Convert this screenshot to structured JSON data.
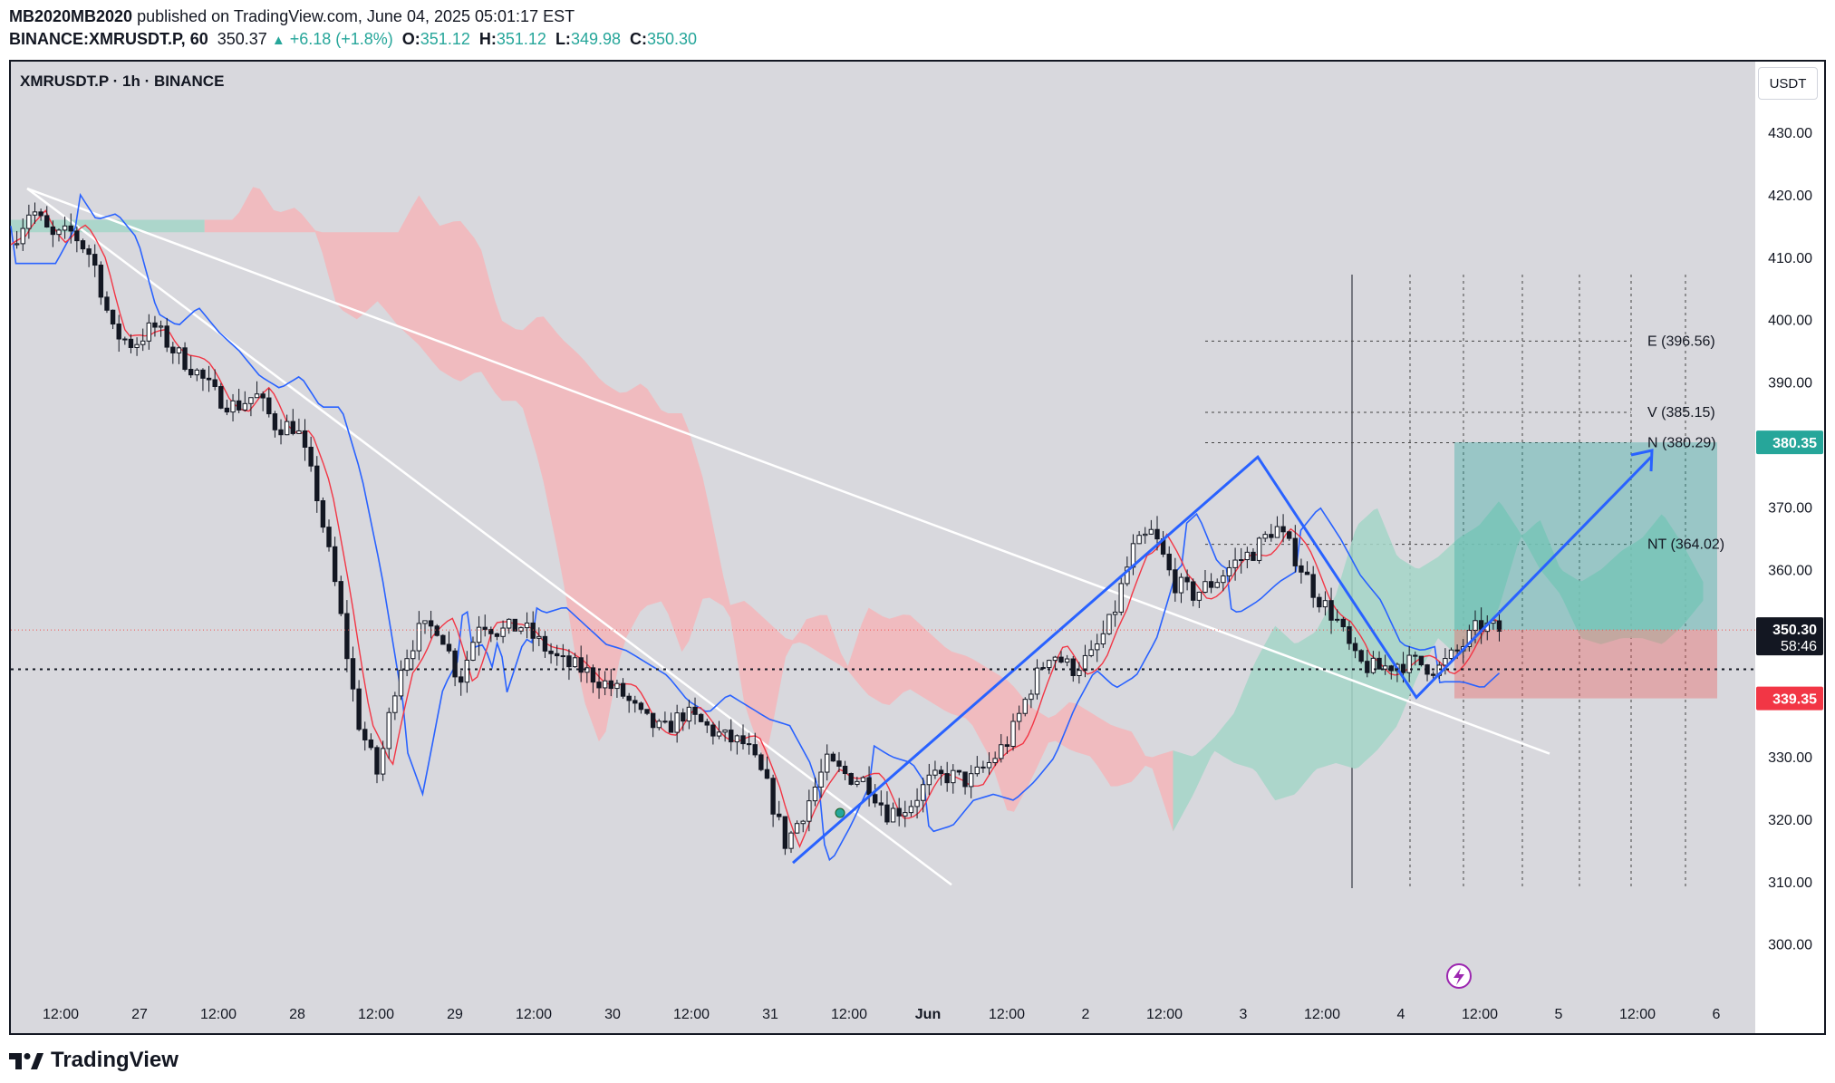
{
  "header": {
    "author": "MB2020MB2020",
    "published": " published on TradingView.com, June 04, 2025 05:01:17 EST",
    "symbol_line": "BINANCE:XMRUSDT.P, 60",
    "last": "350.37",
    "change": "+6.18 (+1.8%)",
    "o_label": "O:",
    "o": "351.12",
    "h_label": "H:",
    "h": "351.12",
    "l_label": "L:",
    "l": "349.98",
    "c_label": "C:",
    "c": "350.30"
  },
  "chart_title": "XMRUSDT.P · 1h · BINANCE",
  "currency": "USDT",
  "footer": {
    "logo_text": "TradingView"
  },
  "colors": {
    "up": "#26a69a",
    "down": "#ef5350",
    "candle": "#131722",
    "blue": "#2962ff",
    "red_line": "#f23645",
    "kumo_green": "#a5d6c8",
    "kumo_red": "#f4b6ba",
    "plot_bg": "#d8d8dd"
  },
  "chart_data": {
    "type": "candlestick",
    "symbol": "XMRUSDT.P",
    "timeframe": "1h",
    "exchange": "BINANCE",
    "y_axis": {
      "ticks": [
        430,
        420,
        410,
        400,
        390,
        380,
        370,
        360,
        350,
        340,
        330,
        320,
        310,
        300
      ]
    },
    "x_axis": {
      "ticks": [
        "12:00",
        "27",
        "12:00",
        "28",
        "12:00",
        "29",
        "12:00",
        "30",
        "12:00",
        "31",
        "12:00",
        "Jun",
        "12:00",
        "2",
        "12:00",
        "3",
        "12:00",
        "4",
        "12:00",
        "5",
        "12:00",
        "6"
      ]
    },
    "price_badges": [
      {
        "label": "380.35",
        "value": 380.35,
        "color": "#26a69a"
      },
      {
        "label": "350.30",
        "sub": "58:46",
        "value": 350.3,
        "color": "#131722"
      },
      {
        "label": "339.35",
        "value": 339.35,
        "color": "#f23645"
      }
    ],
    "projection_labels": [
      {
        "label": "E (396.56)",
        "value": 396.56
      },
      {
        "label": "V (385.15)",
        "value": 385.15
      },
      {
        "label": "N (380.29)",
        "value": 380.29
      },
      {
        "label": "NT (364.02)",
        "value": 364.02
      }
    ],
    "position": {
      "entry": 350.3,
      "target": 380.35,
      "stop": 339.35
    },
    "close_path": [
      {
        "t": 0,
        "v": 412
      },
      {
        "t": 1,
        "v": 418
      },
      {
        "t": 2,
        "v": 413
      },
      {
        "t": 3,
        "v": 414
      },
      {
        "t": 4,
        "v": 410
      },
      {
        "t": 5,
        "v": 398
      },
      {
        "t": 6,
        "v": 396
      },
      {
        "t": 7,
        "v": 399
      },
      {
        "t": 8,
        "v": 395
      },
      {
        "t": 9,
        "v": 392
      },
      {
        "t": 10,
        "v": 388
      },
      {
        "t": 11,
        "v": 386
      },
      {
        "t": 12,
        "v": 388
      },
      {
        "t": 13,
        "v": 383
      },
      {
        "t": 14,
        "v": 383
      },
      {
        "t": 15,
        "v": 372
      },
      {
        "t": 16,
        "v": 356
      },
      {
        "t": 17,
        "v": 336
      },
      {
        "t": 18,
        "v": 327
      },
      {
        "t": 19,
        "v": 344
      },
      {
        "t": 20,
        "v": 350
      },
      {
        "t": 21,
        "v": 351
      },
      {
        "t": 22,
        "v": 342
      },
      {
        "t": 23,
        "v": 352
      },
      {
        "t": 24,
        "v": 350
      },
      {
        "t": 25,
        "v": 351
      },
      {
        "t": 26,
        "v": 348
      },
      {
        "t": 27,
        "v": 345
      },
      {
        "t": 28,
        "v": 344
      },
      {
        "t": 29,
        "v": 342
      },
      {
        "t": 30,
        "v": 340
      },
      {
        "t": 31,
        "v": 336
      },
      {
        "t": 32,
        "v": 334
      },
      {
        "t": 33,
        "v": 337
      },
      {
        "t": 34,
        "v": 335
      },
      {
        "t": 35,
        "v": 333
      },
      {
        "t": 36,
        "v": 332
      },
      {
        "t": 37,
        "v": 326
      },
      {
        "t": 38,
        "v": 316
      },
      {
        "t": 39,
        "v": 322
      },
      {
        "t": 40,
        "v": 329
      },
      {
        "t": 41,
        "v": 327
      },
      {
        "t": 42,
        "v": 326
      },
      {
        "t": 43,
        "v": 321
      },
      {
        "t": 44,
        "v": 322
      },
      {
        "t": 45,
        "v": 326
      },
      {
        "t": 46,
        "v": 327
      },
      {
        "t": 47,
        "v": 326
      },
      {
        "t": 48,
        "v": 329
      },
      {
        "t": 49,
        "v": 333
      },
      {
        "t": 50,
        "v": 341
      },
      {
        "t": 51,
        "v": 347
      },
      {
        "t": 52,
        "v": 344
      },
      {
        "t": 53,
        "v": 346
      },
      {
        "t": 54,
        "v": 352
      },
      {
        "t": 55,
        "v": 363
      },
      {
        "t": 56,
        "v": 366
      },
      {
        "t": 57,
        "v": 358
      },
      {
        "t": 58,
        "v": 356
      },
      {
        "t": 59,
        "v": 358
      },
      {
        "t": 60,
        "v": 361
      },
      {
        "t": 61,
        "v": 363
      },
      {
        "t": 62,
        "v": 367
      },
      {
        "t": 63,
        "v": 362
      },
      {
        "t": 64,
        "v": 356
      },
      {
        "t": 65,
        "v": 352
      },
      {
        "t": 66,
        "v": 345
      },
      {
        "t": 67,
        "v": 344
      },
      {
        "t": 68,
        "v": 345
      },
      {
        "t": 69,
        "v": 345
      },
      {
        "t": 70,
        "v": 344
      },
      {
        "t": 71,
        "v": 347
      },
      {
        "t": 72,
        "v": 351
      },
      {
        "t": 73,
        "v": 350.3
      }
    ]
  }
}
